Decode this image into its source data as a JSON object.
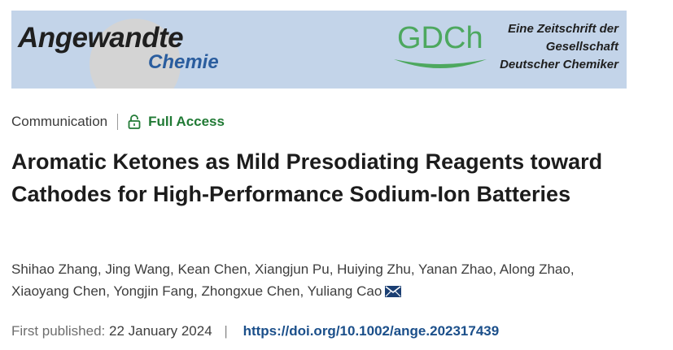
{
  "banner": {
    "journal_line1": "Angewandte",
    "journal_line2": "Chemie",
    "society_logo": "GDCh",
    "society_name_lines": [
      "Eine Zeitschrift der",
      "Gesellschaft",
      "Deutscher Chemiker"
    ],
    "colors": {
      "background": "#c3d4e9",
      "logo_green": "#4da85f",
      "chemie_blue": "#2a5d9e"
    }
  },
  "article": {
    "type": "Communication",
    "access_icon": "open-lock-icon",
    "access": "Full Access",
    "title": "Aromatic Ketones as Mild Presodiating Reagents toward Cathodes for High-Performance Sodium-Ion Batteries",
    "authors": [
      "Shihao Zhang",
      "Jing Wang",
      "Kean Chen",
      "Xiangjun Pu",
      "Huiying Zhu",
      "Yanan Zhao",
      "Along Zhao",
      "Xiaoyang Chen",
      "Yongjin Fang",
      "Zhongxue Chen",
      "Yuliang Cao"
    ],
    "corresponding_icon": "envelope-icon",
    "first_published_label": "First published:",
    "first_published_date": "22 January 2024",
    "pipe": "|",
    "doi": "https://doi.org/10.1002/ange.202317439",
    "colors": {
      "access_green": "#217a35",
      "doi_blue": "#1b4f8a"
    }
  }
}
